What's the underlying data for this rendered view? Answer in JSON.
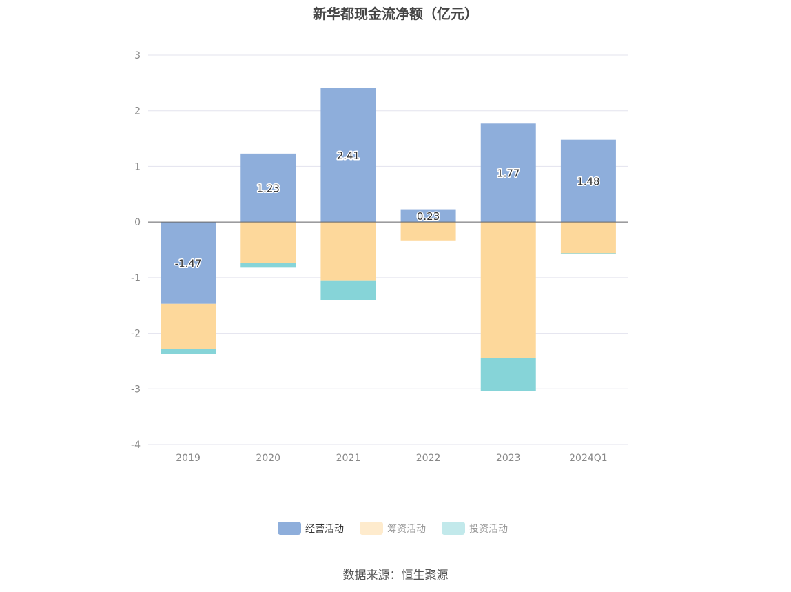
{
  "title": "新华都现金流净额（亿元）",
  "source": "数据来源：恒生聚源",
  "chart_data": {
    "type": "bar",
    "stacked": true,
    "categories": [
      "2019",
      "2020",
      "2021",
      "2022",
      "2023",
      "2024Q1"
    ],
    "ylim": [
      -4,
      3
    ],
    "yticks": [
      "3",
      "2",
      "1",
      "0",
      "-1",
      "-2",
      "-3",
      "-4"
    ],
    "grid": true,
    "legend_position": "bottom",
    "series": [
      {
        "name": "经营活动",
        "color": "#8eaedb",
        "values": [
          -1.47,
          1.23,
          2.41,
          0.23,
          1.77,
          1.48
        ],
        "labels": [
          "-1.47",
          "1.23",
          "2.41",
          "0.23",
          "1.77",
          "1.48"
        ]
      },
      {
        "name": "筹资活动",
        "color": "#fdd89b",
        "values": [
          -0.82,
          -0.73,
          -1.06,
          -0.33,
          -2.45,
          -0.56
        ]
      },
      {
        "name": "投资活动",
        "color": "#86d4d8",
        "values": [
          -0.08,
          -0.09,
          -0.35,
          0.0,
          -0.59,
          -0.01
        ]
      }
    ]
  }
}
